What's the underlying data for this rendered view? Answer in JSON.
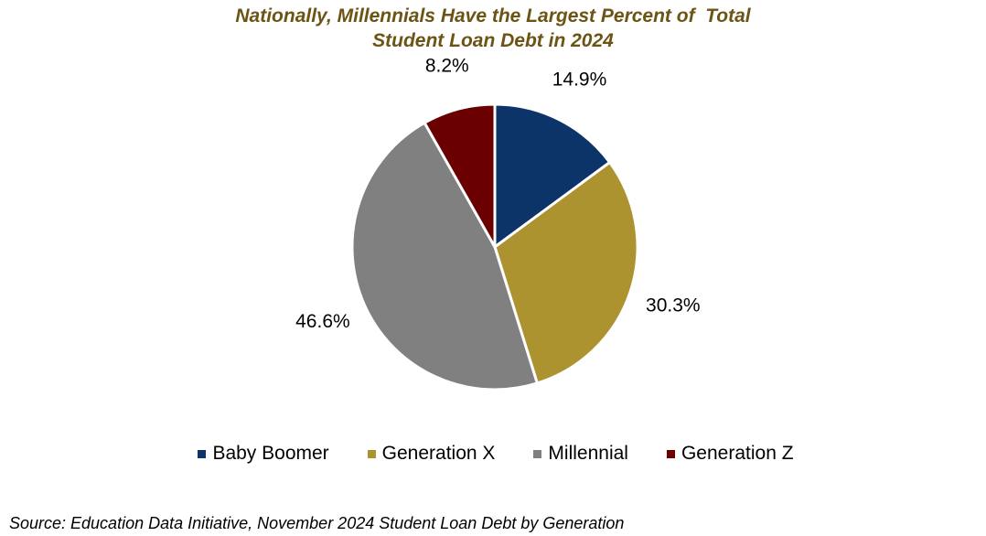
{
  "chart_data": {
    "type": "pie",
    "title_lines": [
      "Nationally, Millennials Have the Largest Percent of  Total",
      "Student Loan Debt in 2024"
    ],
    "categories": [
      "Baby Boomer",
      "Generation X",
      "Millennial",
      "Generation Z"
    ],
    "values": [
      14.9,
      30.3,
      46.6,
      8.2
    ],
    "value_labels": [
      "14.9%",
      "30.3%",
      "46.6%",
      "8.2%"
    ],
    "colors": [
      "#0d3468",
      "#ad9230",
      "#808080",
      "#6b0000"
    ],
    "start_angle": "12 o'clock",
    "direction": "clockwise",
    "legend_position": "bottom",
    "source": "Source: Education Data Initiative, November 2024 Student Loan Debt by Generation"
  }
}
